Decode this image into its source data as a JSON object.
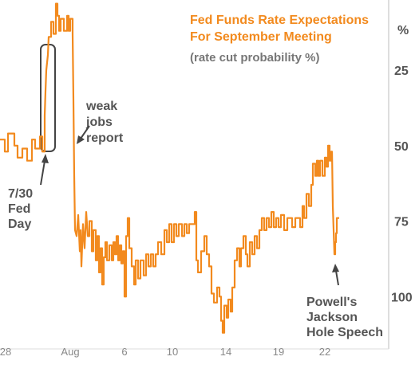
{
  "chart_data": {
    "type": "line",
    "title_lines": [
      "Fed Funds Rate Expectations",
      "For September Meeting"
    ],
    "subtitle": "(rate cut probability %)",
    "y_unit_label": "%",
    "y_axis": {
      "ticks": [
        25,
        50,
        75,
        100
      ],
      "range": [
        0,
        110
      ],
      "inverted": true
    },
    "x_ticks": [
      "28",
      "Aug",
      "6",
      "10",
      "14",
      "19",
      "22"
    ],
    "annotations": [
      {
        "lines": [
          "weak",
          "jobs",
          "report"
        ]
      },
      {
        "lines": [
          "7/30",
          "Fed",
          "Day"
        ]
      },
      {
        "lines": [
          "Powell's",
          "Jackson",
          "Hole Speech"
        ]
      }
    ],
    "series": [
      {
        "color": "#f28a1e",
        "points": [
          [
            0,
            48
          ],
          [
            6,
            48
          ],
          [
            6,
            52
          ],
          [
            10,
            52
          ],
          [
            10,
            46
          ],
          [
            18,
            46
          ],
          [
            18,
            50
          ],
          [
            22,
            50
          ],
          [
            22,
            54
          ],
          [
            28,
            54
          ],
          [
            28,
            51
          ],
          [
            34,
            51
          ],
          [
            34,
            55
          ],
          [
            40,
            55
          ],
          [
            40,
            48
          ],
          [
            44,
            48
          ],
          [
            44,
            51
          ],
          [
            50,
            51
          ],
          [
            50,
            47
          ],
          [
            53,
            47
          ],
          [
            53,
            52
          ],
          [
            56,
            52
          ],
          [
            56,
            40
          ],
          [
            57,
            32
          ],
          [
            58,
            25
          ],
          [
            60,
            20
          ],
          [
            61,
            14
          ],
          [
            64,
            14
          ],
          [
            64,
            9
          ],
          [
            67,
            9
          ],
          [
            67,
            13
          ],
          [
            70,
            13
          ],
          [
            70,
            3
          ],
          [
            72,
            3
          ],
          [
            72,
            7
          ],
          [
            74,
            7
          ],
          [
            74,
            12
          ],
          [
            76,
            12
          ],
          [
            76,
            8
          ],
          [
            80,
            8
          ],
          [
            80,
            12
          ],
          [
            84,
            12
          ],
          [
            84,
            7
          ],
          [
            86,
            7
          ],
          [
            86,
            12
          ],
          [
            88,
            12
          ],
          [
            88,
            8
          ],
          [
            91,
            8
          ],
          [
            91,
            13
          ],
          [
            92,
            35
          ],
          [
            93,
            60
          ],
          [
            94,
            78
          ],
          [
            96,
            80
          ],
          [
            98,
            73
          ],
          [
            100,
            85
          ],
          [
            101,
            78
          ],
          [
            102,
            90
          ],
          [
            104,
            76
          ],
          [
            106,
            84
          ],
          [
            108,
            72
          ],
          [
            110,
            80
          ],
          [
            112,
            80
          ],
          [
            112,
            75
          ],
          [
            115,
            75
          ],
          [
            115,
            85
          ],
          [
            117,
            85
          ],
          [
            117,
            78
          ],
          [
            120,
            78
          ],
          [
            120,
            88
          ],
          [
            122,
            88
          ],
          [
            122,
            80
          ],
          [
            124,
            80
          ],
          [
            124,
            92
          ],
          [
            126,
            92
          ],
          [
            126,
            84
          ],
          [
            128,
            84
          ],
          [
            128,
            96
          ],
          [
            130,
            96
          ],
          [
            130,
            87
          ],
          [
            132,
            87
          ],
          [
            132,
            82
          ],
          [
            134,
            82
          ],
          [
            134,
            88
          ],
          [
            137,
            88
          ],
          [
            137,
            83
          ],
          [
            140,
            83
          ],
          [
            140,
            88
          ],
          [
            142,
            88
          ],
          [
            142,
            82
          ],
          [
            144,
            82
          ],
          [
            144,
            86
          ],
          [
            146,
            86
          ],
          [
            146,
            80
          ],
          [
            148,
            80
          ],
          [
            148,
            88
          ],
          [
            150,
            88
          ],
          [
            150,
            83
          ],
          [
            152,
            83
          ],
          [
            152,
            89
          ],
          [
            154,
            89
          ],
          [
            154,
            85
          ],
          [
            156,
            85
          ],
          [
            156,
            100
          ],
          [
            158,
            100
          ],
          [
            158,
            80
          ],
          [
            160,
            80
          ],
          [
            160,
            74
          ],
          [
            162,
            74
          ],
          [
            162,
            84
          ],
          [
            165,
            84
          ],
          [
            165,
            90
          ],
          [
            168,
            90
          ],
          [
            168,
            96
          ],
          [
            170,
            96
          ],
          [
            170,
            88
          ],
          [
            173,
            88
          ],
          [
            173,
            94
          ],
          [
            176,
            94
          ],
          [
            176,
            88
          ],
          [
            180,
            88
          ],
          [
            180,
            93
          ],
          [
            183,
            93
          ],
          [
            183,
            86
          ],
          [
            186,
            86
          ],
          [
            186,
            90
          ],
          [
            189,
            90
          ],
          [
            189,
            86
          ],
          [
            192,
            86
          ],
          [
            192,
            90
          ],
          [
            195,
            90
          ],
          [
            195,
            86
          ],
          [
            198,
            86
          ],
          [
            198,
            82
          ],
          [
            202,
            82
          ],
          [
            202,
            86
          ],
          [
            206,
            86
          ],
          [
            206,
            78
          ],
          [
            209,
            78
          ],
          [
            209,
            82
          ],
          [
            212,
            82
          ],
          [
            212,
            76
          ],
          [
            215,
            76
          ],
          [
            215,
            82
          ],
          [
            218,
            82
          ],
          [
            218,
            76
          ],
          [
            221,
            76
          ],
          [
            221,
            80
          ],
          [
            224,
            80
          ],
          [
            224,
            76
          ],
          [
            228,
            76
          ],
          [
            228,
            80
          ],
          [
            231,
            80
          ],
          [
            231,
            76
          ],
          [
            234,
            76
          ],
          [
            234,
            79
          ],
          [
            237,
            79
          ],
          [
            237,
            76
          ],
          [
            244,
            76
          ],
          [
            244,
            72
          ],
          [
            246,
            72
          ],
          [
            246,
            88
          ],
          [
            248,
            88
          ],
          [
            248,
            92
          ],
          [
            252,
            92
          ],
          [
            252,
            85
          ],
          [
            256,
            85
          ],
          [
            256,
            80
          ],
          [
            259,
            80
          ],
          [
            259,
            86
          ],
          [
            262,
            86
          ],
          [
            262,
            90
          ],
          [
            265,
            90
          ],
          [
            265,
            99
          ],
          [
            268,
            99
          ],
          [
            268,
            102
          ],
          [
            272,
            102
          ],
          [
            272,
            97
          ],
          [
            275,
            97
          ],
          [
            275,
            100
          ],
          [
            277,
            100
          ],
          [
            277,
            108
          ],
          [
            279,
            108
          ],
          [
            279,
            112
          ],
          [
            281,
            112
          ],
          [
            281,
            103
          ],
          [
            284,
            103
          ],
          [
            284,
            107
          ],
          [
            286,
            107
          ],
          [
            286,
            101
          ],
          [
            289,
            101
          ],
          [
            289,
            105
          ],
          [
            291,
            105
          ],
          [
            291,
            97
          ],
          [
            294,
            97
          ],
          [
            294,
            88
          ],
          [
            297,
            88
          ],
          [
            297,
            84
          ],
          [
            300,
            84
          ],
          [
            300,
            90
          ],
          [
            302,
            90
          ],
          [
            302,
            84
          ],
          [
            305,
            84
          ],
          [
            305,
            80
          ],
          [
            308,
            80
          ],
          [
            308,
            86
          ],
          [
            310,
            86
          ],
          [
            310,
            90
          ],
          [
            313,
            90
          ],
          [
            313,
            82
          ],
          [
            316,
            82
          ],
          [
            316,
            86
          ],
          [
            319,
            86
          ],
          [
            319,
            80
          ],
          [
            322,
            80
          ],
          [
            322,
            84
          ],
          [
            325,
            84
          ],
          [
            325,
            78
          ],
          [
            328,
            78
          ],
          [
            328,
            74
          ],
          [
            331,
            74
          ],
          [
            331,
            78
          ],
          [
            334,
            78
          ],
          [
            334,
            74
          ],
          [
            337,
            74
          ],
          [
            337,
            77
          ],
          [
            340,
            77
          ],
          [
            340,
            72
          ],
          [
            343,
            72
          ],
          [
            343,
            77
          ],
          [
            346,
            77
          ],
          [
            346,
            74
          ],
          [
            349,
            74
          ],
          [
            349,
            77
          ],
          [
            352,
            77
          ],
          [
            352,
            73
          ],
          [
            356,
            73
          ],
          [
            356,
            78
          ],
          [
            360,
            78
          ],
          [
            360,
            74
          ],
          [
            366,
            74
          ],
          [
            366,
            77
          ],
          [
            370,
            77
          ],
          [
            370,
            74
          ],
          [
            376,
            74
          ],
          [
            376,
            77
          ],
          [
            379,
            77
          ],
          [
            379,
            70
          ],
          [
            381,
            70
          ],
          [
            381,
            74
          ],
          [
            384,
            74
          ],
          [
            384,
            66
          ],
          [
            387,
            66
          ],
          [
            387,
            70
          ],
          [
            390,
            70
          ],
          [
            390,
            63
          ],
          [
            392,
            63
          ],
          [
            392,
            56
          ],
          [
            395,
            56
          ],
          [
            395,
            60
          ],
          [
            397,
            60
          ],
          [
            397,
            55
          ],
          [
            399,
            55
          ],
          [
            399,
            60
          ],
          [
            401,
            60
          ],
          [
            401,
            55
          ],
          [
            404,
            55
          ],
          [
            404,
            60
          ],
          [
            407,
            60
          ],
          [
            407,
            54
          ],
          [
            409,
            54
          ],
          [
            409,
            57
          ],
          [
            411,
            57
          ],
          [
            411,
            50
          ],
          [
            413,
            50
          ],
          [
            413,
            55
          ],
          [
            415,
            55
          ],
          [
            415,
            52
          ],
          [
            416,
            52
          ],
          [
            417,
            70
          ],
          [
            418,
            78
          ],
          [
            419,
            86
          ],
          [
            420,
            86
          ],
          [
            420,
            82
          ],
          [
            421,
            82
          ],
          [
            421,
            79
          ],
          [
            422,
            79
          ],
          [
            422,
            74
          ],
          [
            425,
            74
          ]
        ]
      }
    ]
  }
}
